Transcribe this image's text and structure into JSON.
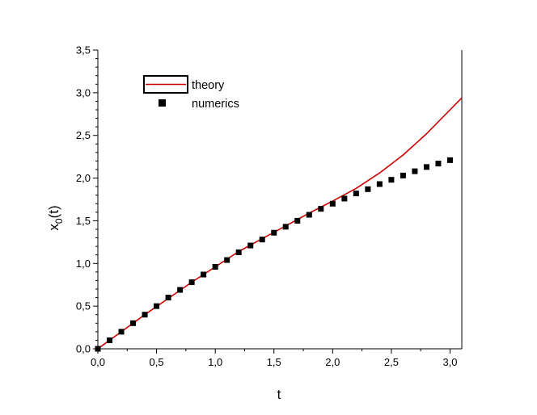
{
  "chart_data": {
    "type": "line",
    "xlabel": "t",
    "ylabel": "x0(t)",
    "ylabel_main": "x",
    "ylabel_sub": "0",
    "ylabel_tail": "(t)",
    "xlim": [
      0.0,
      3.1
    ],
    "ylim": [
      0.0,
      3.5
    ],
    "grid": false,
    "legend_position": "top-left",
    "x_ticks": [
      "0,0",
      "0,5",
      "1,0",
      "1,5",
      "2,0",
      "2,5",
      "3,0"
    ],
    "x_tick_values": [
      0.0,
      0.5,
      1.0,
      1.5,
      2.0,
      2.5,
      3.0
    ],
    "y_ticks": [
      "0,0",
      "0,5",
      "1,0",
      "1,5",
      "2,0",
      "2,5",
      "3,0",
      "3,5"
    ],
    "y_tick_values": [
      0.0,
      0.5,
      1.0,
      1.5,
      2.0,
      2.5,
      3.0,
      3.5
    ],
    "series": [
      {
        "name": "theory",
        "style": "line",
        "color": "#cc0000",
        "x": [
          0.0,
          0.2,
          0.4,
          0.6,
          0.8,
          1.0,
          1.2,
          1.4,
          1.6,
          1.8,
          2.0,
          2.2,
          2.4,
          2.6,
          2.8,
          3.0,
          3.1
        ],
        "y": [
          0.0,
          0.2,
          0.4,
          0.59,
          0.78,
          0.96,
          1.14,
          1.29,
          1.44,
          1.59,
          1.73,
          1.88,
          2.06,
          2.27,
          2.52,
          2.8,
          2.94
        ]
      },
      {
        "name": "numerics",
        "style": "markers",
        "color": "#000000",
        "x": [
          0.0,
          0.1,
          0.2,
          0.3,
          0.4,
          0.5,
          0.6,
          0.7,
          0.8,
          0.9,
          1.0,
          1.1,
          1.2,
          1.3,
          1.4,
          1.5,
          1.6,
          1.7,
          1.8,
          1.9,
          2.0,
          2.1,
          2.2,
          2.3,
          2.4,
          2.5,
          2.6,
          2.7,
          2.8,
          2.9,
          3.0
        ],
        "y": [
          0.0,
          0.1,
          0.2,
          0.3,
          0.4,
          0.5,
          0.6,
          0.69,
          0.78,
          0.87,
          0.96,
          1.04,
          1.13,
          1.21,
          1.28,
          1.36,
          1.43,
          1.5,
          1.57,
          1.64,
          1.7,
          1.76,
          1.82,
          1.87,
          1.93,
          1.98,
          2.03,
          2.08,
          2.13,
          2.17,
          2.21
        ]
      }
    ]
  }
}
